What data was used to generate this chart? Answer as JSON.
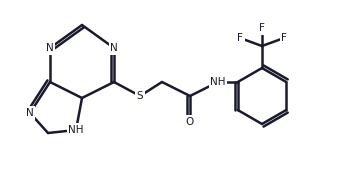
{
  "background": "#ffffff",
  "line_color": "#1a1a2e",
  "lw": 1.8,
  "fontsize": 7.5,
  "xlim": [
    0,
    361
  ],
  "ylim": [
    0,
    171
  ]
}
